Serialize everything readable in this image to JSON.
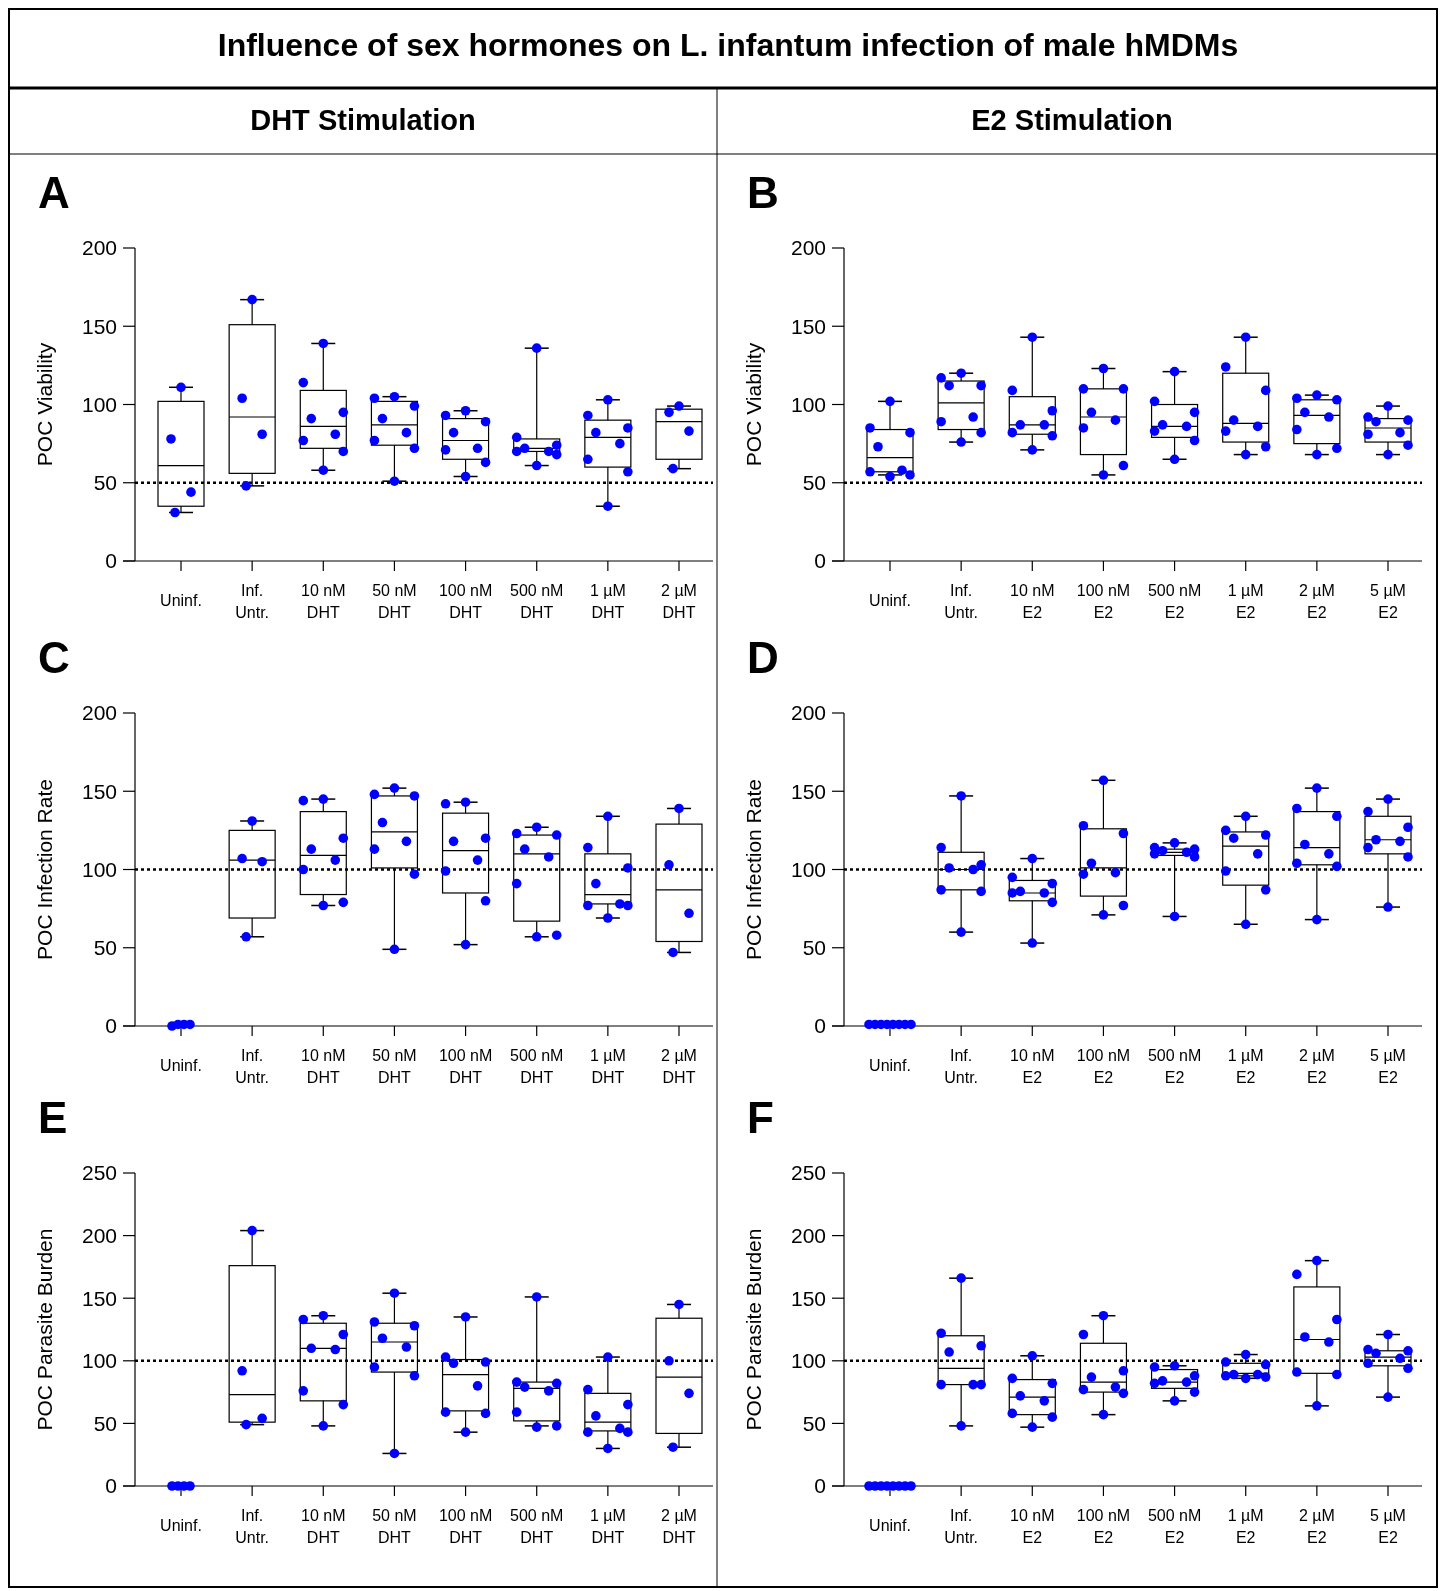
{
  "chart_data": [
    {
      "type": "other",
      "title": "Influence of sex hormones on L. infantum infection of male hMDMs",
      "annotations": [
        "DHT Stimulation",
        "E2 Stimulation"
      ]
    },
    {
      "type": "box",
      "title": "A",
      "ylabel": "POC Viability",
      "categories": [
        "Uninf.",
        "Inf. Untr.",
        "10 nM DHT",
        "50 nM DHT",
        "100 nM DHT",
        "500 nM DHT",
        "1 µM DHT",
        "2 µM DHT"
      ],
      "ylim": [
        0,
        200
      ],
      "yticks": [
        0,
        50,
        100,
        150,
        200
      ],
      "boxes": [
        {
          "low": 31,
          "q1": 35,
          "median": 61,
          "q3": 102,
          "high": 111
        },
        {
          "low": 48,
          "q1": 56,
          "median": 92,
          "q3": 151,
          "high": 167
        },
        {
          "low": 58,
          "q1": 72,
          "median": 86,
          "q3": 109,
          "high": 139
        },
        {
          "low": 51,
          "q1": 74,
          "median": 87,
          "q3": 102,
          "high": 105
        },
        {
          "low": 54,
          "q1": 65,
          "median": 77,
          "q3": 91,
          "high": 96
        },
        {
          "low": 61,
          "q1": 70,
          "median": 72,
          "q3": 78,
          "high": 136
        },
        {
          "low": 35,
          "q1": 60,
          "median": 79,
          "q3": 90,
          "high": 103
        },
        {
          "low": 59,
          "q1": 65,
          "median": 89,
          "q3": 97,
          "high": 99
        }
      ],
      "series": [
        {
          "type": "scatter",
          "color": "#0000ff",
          "marker": "circle",
          "x": [
            "Uninf.",
            "Uninf.",
            "Uninf.",
            "Uninf.",
            "Inf. Untr.",
            "Inf. Untr.",
            "Inf. Untr.",
            "Inf. Untr.",
            "10 nM DHT",
            "10 nM DHT",
            "10 nM DHT",
            "10 nM DHT",
            "10 nM DHT",
            "10 nM DHT",
            "10 nM DHT",
            "10 nM DHT",
            "50 nM DHT",
            "50 nM DHT",
            "50 nM DHT",
            "50 nM DHT",
            "50 nM DHT",
            "50 nM DHT",
            "50 nM DHT",
            "50 nM DHT",
            "100 nM DHT",
            "100 nM DHT",
            "100 nM DHT",
            "100 nM DHT",
            "100 nM DHT",
            "100 nM DHT",
            "100 nM DHT",
            "100 nM DHT",
            "500 nM DHT",
            "500 nM DHT",
            "500 nM DHT",
            "500 nM DHT",
            "500 nM DHT",
            "500 nM DHT",
            "500 nM DHT",
            "500 nM DHT",
            "1 µM DHT",
            "1 µM DHT",
            "1 µM DHT",
            "1 µM DHT",
            "1 µM DHT",
            "1 µM DHT",
            "1 µM DHT",
            "1 µM DHT",
            "2 µM DHT",
            "2 µM DHT",
            "2 µM DHT",
            "2 µM DHT"
          ],
          "values": [
            111,
            78,
            44,
            31,
            167,
            104,
            81,
            48,
            139,
            114,
            95,
            91,
            81,
            77,
            70,
            58,
            105,
            104,
            99,
            91,
            82,
            77,
            72,
            51,
            96,
            93,
            89,
            82,
            72,
            71,
            63,
            54,
            136,
            79,
            74,
            72,
            70,
            70,
            68,
            61,
            103,
            93,
            85,
            82,
            75,
            65,
            57,
            35,
            99,
            95,
            83,
            59
          ]
        }
      ],
      "ref_lines": [
        {
          "axis": "y",
          "value": 50,
          "line_style": "dotted",
          "color": "#000000"
        }
      ]
    },
    {
      "type": "box",
      "title": "B",
      "ylabel": "POC Viability",
      "categories": [
        "Uninf.",
        "Inf. Untr.",
        "10 nM E2",
        "100 nM E2",
        "500 nM E2",
        "1 µM E2",
        "2 µM E2",
        "5 µM E2"
      ],
      "ylim": [
        0,
        200
      ],
      "yticks": [
        0,
        50,
        100,
        150,
        200
      ],
      "boxes": [
        {
          "low": 55,
          "q1": 57,
          "median": 66,
          "q3": 84,
          "high": 102
        },
        {
          "low": 76,
          "q1": 84,
          "median": 101,
          "q3": 115,
          "high": 120
        },
        {
          "low": 71,
          "q1": 81,
          "median": 87,
          "q3": 105,
          "high": 143
        },
        {
          "low": 55,
          "q1": 68,
          "median": 92,
          "q3": 110,
          "high": 123
        },
        {
          "low": 65,
          "q1": 79,
          "median": 86,
          "q3": 100,
          "high": 121
        },
        {
          "low": 68,
          "q1": 76,
          "median": 88,
          "q3": 120,
          "high": 143
        },
        {
          "low": 68,
          "q1": 75,
          "median": 93,
          "q3": 103,
          "high": 106
        },
        {
          "low": 68,
          "q1": 76,
          "median": 85,
          "q3": 91,
          "high": 99
        }
      ],
      "series": [
        {
          "type": "scatter",
          "color": "#0000ff",
          "marker": "circle",
          "x": [
            "Uninf.",
            "Uninf.",
            "Uninf.",
            "Uninf.",
            "Uninf.",
            "Uninf.",
            "Uninf.",
            "Uninf.",
            "Inf. Untr.",
            "Inf. Untr.",
            "Inf. Untr.",
            "Inf. Untr.",
            "Inf. Untr.",
            "Inf. Untr.",
            "Inf. Untr.",
            "Inf. Untr.",
            "10 nM E2",
            "10 nM E2",
            "10 nM E2",
            "10 nM E2",
            "10 nM E2",
            "10 nM E2",
            "10 nM E2",
            "10 nM E2",
            "100 nM E2",
            "100 nM E2",
            "100 nM E2",
            "100 nM E2",
            "100 nM E2",
            "100 nM E2",
            "100 nM E2",
            "100 nM E2",
            "500 nM E2",
            "500 nM E2",
            "500 nM E2",
            "500 nM E2",
            "500 nM E2",
            "500 nM E2",
            "500 nM E2",
            "500 nM E2",
            "1 µM E2",
            "1 µM E2",
            "1 µM E2",
            "1 µM E2",
            "1 µM E2",
            "1 µM E2",
            "1 µM E2",
            "1 µM E2",
            "2 µM E2",
            "2 µM E2",
            "2 µM E2",
            "2 µM E2",
            "2 µM E2",
            "2 µM E2",
            "2 µM E2",
            "2 µM E2",
            "5 µM E2",
            "5 µM E2",
            "5 µM E2",
            "5 µM E2",
            "5 µM E2",
            "5 µM E2",
            "5 µM E2",
            "5 µM E2"
          ],
          "values": [
            102,
            85,
            82,
            73,
            58,
            57,
            55,
            54,
            120,
            117,
            112,
            112,
            92,
            89,
            82,
            76,
            143,
            109,
            96,
            87,
            87,
            82,
            80,
            71,
            123,
            110,
            110,
            95,
            90,
            85,
            61,
            55,
            121,
            102,
            95,
            87,
            86,
            83,
            77,
            65,
            143,
            124,
            109,
            90,
            86,
            83,
            73,
            68,
            106,
            104,
            103,
            95,
            92,
            84,
            72,
            68,
            99,
            92,
            90,
            89,
            82,
            81,
            74,
            68
          ]
        }
      ],
      "ref_lines": [
        {
          "axis": "y",
          "value": 50,
          "line_style": "dotted",
          "color": "#000000"
        }
      ]
    },
    {
      "type": "box",
      "title": "C",
      "ylabel": "POC Infection Rate",
      "categories": [
        "Uninf.",
        "Inf. Untr.",
        "10 nM DHT",
        "50 nM DHT",
        "100 nM DHT",
        "500 nM DHT",
        "1 µM DHT",
        "2 µM DHT"
      ],
      "ylim": [
        0,
        200
      ],
      "yticks": [
        0,
        50,
        100,
        150,
        200
      ],
      "boxes": [
        null,
        {
          "low": 57,
          "q1": 69,
          "median": 106,
          "q3": 125,
          "high": 131
        },
        {
          "low": 77,
          "q1": 84,
          "median": 109,
          "q3": 137,
          "high": 145
        },
        {
          "low": 49,
          "q1": 101,
          "median": 124,
          "q3": 147,
          "high": 152
        },
        {
          "low": 52,
          "q1": 85,
          "median": 112,
          "q3": 136,
          "high": 143
        },
        {
          "low": 57,
          "q1": 67,
          "median": 110,
          "q3": 122,
          "high": 127
        },
        {
          "low": 69,
          "q1": 78,
          "median": 84,
          "q3": 110,
          "high": 134
        },
        {
          "low": 47,
          "q1": 54,
          "median": 87,
          "q3": 129,
          "high": 139
        }
      ],
      "series": [
        {
          "type": "scatter",
          "color": "#0000ff",
          "marker": "circle",
          "x": [
            "Uninf.",
            "Uninf.",
            "Uninf.",
            "Uninf.",
            "Inf. Untr.",
            "Inf. Untr.",
            "Inf. Untr.",
            "Inf. Untr.",
            "10 nM DHT",
            "10 nM DHT",
            "10 nM DHT",
            "10 nM DHT",
            "10 nM DHT",
            "10 nM DHT",
            "10 nM DHT",
            "10 nM DHT",
            "50 nM DHT",
            "50 nM DHT",
            "50 nM DHT",
            "50 nM DHT",
            "50 nM DHT",
            "50 nM DHT",
            "50 nM DHT",
            "50 nM DHT",
            "100 nM DHT",
            "100 nM DHT",
            "100 nM DHT",
            "100 nM DHT",
            "100 nM DHT",
            "100 nM DHT",
            "100 nM DHT",
            "100 nM DHT",
            "500 nM DHT",
            "500 nM DHT",
            "500 nM DHT",
            "500 nM DHT",
            "500 nM DHT",
            "500 nM DHT",
            "500 nM DHT",
            "500 nM DHT",
            "1 µM DHT",
            "1 µM DHT",
            "1 µM DHT",
            "1 µM DHT",
            "1 µM DHT",
            "1 µM DHT",
            "1 µM DHT",
            "1 µM DHT",
            "2 µM DHT",
            "2 µM DHT",
            "2 µM DHT",
            "2 µM DHT"
          ],
          "values": [
            0,
            1,
            1,
            1,
            131,
            107,
            105,
            57,
            145,
            144,
            120,
            113,
            106,
            100,
            79,
            77,
            152,
            148,
            147,
            130,
            118,
            113,
            97,
            49,
            143,
            142,
            120,
            118,
            106,
            99,
            80,
            52,
            127,
            123,
            122,
            113,
            108,
            91,
            58,
            57,
            134,
            114,
            101,
            91,
            78,
            77,
            77,
            69,
            139,
            103,
            72,
            47
          ]
        }
      ],
      "ref_lines": [
        {
          "axis": "y",
          "value": 100,
          "line_style": "dotted",
          "color": "#000000"
        }
      ]
    },
    {
      "type": "box",
      "title": "D",
      "ylabel": "POC Infection Rate",
      "categories": [
        "Uninf.",
        "Inf. Untr.",
        "10 nM E2",
        "100 nM E2",
        "500 nM E2",
        "1 µM E2",
        "2 µM E2",
        "5 µM E2"
      ],
      "ylim": [
        0,
        200
      ],
      "yticks": [
        0,
        50,
        100,
        150,
        200
      ],
      "boxes": [
        null,
        {
          "low": 60,
          "q1": 87,
          "median": 100,
          "q3": 111,
          "high": 147
        },
        {
          "low": 53,
          "q1": 80,
          "median": 85,
          "q3": 93,
          "high": 107
        },
        {
          "low": 71,
          "q1": 83,
          "median": 101,
          "q3": 126,
          "high": 157
        },
        {
          "low": 70,
          "q1": 109,
          "median": 111,
          "q3": 113,
          "high": 117
        },
        {
          "low": 65,
          "q1": 90,
          "median": 115,
          "q3": 124,
          "high": 134
        },
        {
          "low": 68,
          "q1": 103,
          "median": 114,
          "q3": 137,
          "high": 152
        },
        {
          "low": 76,
          "q1": 110,
          "median": 119,
          "q3": 134,
          "high": 145
        }
      ],
      "series": [
        {
          "type": "scatter",
          "color": "#0000ff",
          "marker": "circle",
          "x": [
            "Uninf.",
            "Uninf.",
            "Uninf.",
            "Uninf.",
            "Uninf.",
            "Uninf.",
            "Uninf.",
            "Uninf.",
            "Inf. Untr.",
            "Inf. Untr.",
            "Inf. Untr.",
            "Inf. Untr.",
            "Inf. Untr.",
            "Inf. Untr.",
            "Inf. Untr.",
            "Inf. Untr.",
            "10 nM E2",
            "10 nM E2",
            "10 nM E2",
            "10 nM E2",
            "10 nM E2",
            "10 nM E2",
            "10 nM E2",
            "10 nM E2",
            "100 nM E2",
            "100 nM E2",
            "100 nM E2",
            "100 nM E2",
            "100 nM E2",
            "100 nM E2",
            "100 nM E2",
            "100 nM E2",
            "500 nM E2",
            "500 nM E2",
            "500 nM E2",
            "500 nM E2",
            "500 nM E2",
            "500 nM E2",
            "500 nM E2",
            "500 nM E2",
            "1 µM E2",
            "1 µM E2",
            "1 µM E2",
            "1 µM E2",
            "1 µM E2",
            "1 µM E2",
            "1 µM E2",
            "1 µM E2",
            "2 µM E2",
            "2 µM E2",
            "2 µM E2",
            "2 µM E2",
            "2 µM E2",
            "2 µM E2",
            "2 µM E2",
            "2 µM E2",
            "5 µM E2",
            "5 µM E2",
            "5 µM E2",
            "5 µM E2",
            "5 µM E2",
            "5 µM E2",
            "5 µM E2",
            "5 µM E2"
          ],
          "values": [
            1,
            1,
            1,
            1,
            1,
            1,
            1,
            1,
            147,
            114,
            103,
            101,
            100,
            87,
            86,
            60,
            107,
            95,
            91,
            86,
            85,
            85,
            79,
            53,
            157,
            128,
            123,
            104,
            98,
            97,
            77,
            71,
            117,
            114,
            113,
            112,
            111,
            110,
            108,
            70,
            134,
            125,
            122,
            120,
            110,
            99,
            87,
            65,
            152,
            139,
            134,
            116,
            110,
            104,
            102,
            68,
            145,
            137,
            127,
            119,
            118,
            114,
            108,
            76
          ]
        }
      ],
      "ref_lines": [
        {
          "axis": "y",
          "value": 100,
          "line_style": "dotted",
          "color": "#000000"
        }
      ]
    },
    {
      "type": "box",
      "title": "E",
      "ylabel": "POC Parasite Burden",
      "categories": [
        "Uninf.",
        "Inf. Untr.",
        "10 nM DHT",
        "50 nM DHT",
        "100 nM DHT",
        "500 nM DHT",
        "1 µM DHT",
        "2 µM DHT"
      ],
      "ylim": [
        0,
        250
      ],
      "yticks": [
        0,
        50,
        100,
        150,
        200,
        250
      ],
      "boxes": [
        null,
        {
          "low": 49,
          "q1": 51,
          "median": 73,
          "q3": 176,
          "high": 204
        },
        {
          "low": 48,
          "q1": 68,
          "median": 110,
          "q3": 130,
          "high": 136
        },
        {
          "low": 26,
          "q1": 91,
          "median": 115,
          "q3": 130,
          "high": 154
        },
        {
          "low": 43,
          "q1": 60,
          "median": 89,
          "q3": 101,
          "high": 135
        },
        {
          "low": 48,
          "q1": 52,
          "median": 78,
          "q3": 83,
          "high": 151
        },
        {
          "low": 30,
          "q1": 44,
          "median": 51,
          "q3": 74,
          "high": 103
        },
        {
          "low": 31,
          "q1": 42,
          "median": 87,
          "q3": 134,
          "high": 145
        }
      ],
      "series": [
        {
          "type": "scatter",
          "color": "#0000ff",
          "marker": "circle",
          "x": [
            "Uninf.",
            "Uninf.",
            "Uninf.",
            "Uninf.",
            "Inf. Untr.",
            "Inf. Untr.",
            "Inf. Untr.",
            "Inf. Untr.",
            "10 nM DHT",
            "10 nM DHT",
            "10 nM DHT",
            "10 nM DHT",
            "10 nM DHT",
            "10 nM DHT",
            "10 nM DHT",
            "10 nM DHT",
            "50 nM DHT",
            "50 nM DHT",
            "50 nM DHT",
            "50 nM DHT",
            "50 nM DHT",
            "50 nM DHT",
            "50 nM DHT",
            "50 nM DHT",
            "100 nM DHT",
            "100 nM DHT",
            "100 nM DHT",
            "100 nM DHT",
            "100 nM DHT",
            "100 nM DHT",
            "100 nM DHT",
            "100 nM DHT",
            "500 nM DHT",
            "500 nM DHT",
            "500 nM DHT",
            "500 nM DHT",
            "500 nM DHT",
            "500 nM DHT",
            "500 nM DHT",
            "500 nM DHT",
            "1 µM DHT",
            "1 µM DHT",
            "1 µM DHT",
            "1 µM DHT",
            "1 µM DHT",
            "1 µM DHT",
            "1 µM DHT",
            "1 µM DHT",
            "2 µM DHT",
            "2 µM DHT",
            "2 µM DHT",
            "2 µM DHT"
          ],
          "values": [
            0,
            0,
            0,
            0,
            204,
            92,
            54,
            49,
            136,
            133,
            121,
            110,
            109,
            76,
            65,
            48,
            154,
            131,
            128,
            118,
            111,
            95,
            88,
            26,
            135,
            103,
            99,
            98,
            80,
            59,
            58,
            43,
            151,
            83,
            82,
            79,
            76,
            59,
            48,
            47,
            103,
            77,
            65,
            56,
            46,
            43,
            43,
            30,
            145,
            100,
            74,
            31
          ]
        }
      ],
      "ref_lines": [
        {
          "axis": "y",
          "value": 100,
          "line_style": "dotted",
          "color": "#000000"
        }
      ]
    },
    {
      "type": "box",
      "title": "F",
      "ylabel": "POC Parasite Burden",
      "categories": [
        "Uninf.",
        "Inf. Untr.",
        "10 nM E2",
        "100 nM E2",
        "500 nM E2",
        "1 µM E2",
        "2 µM E2",
        "5 µM E2"
      ],
      "ylim": [
        0,
        250
      ],
      "yticks": [
        0,
        50,
        100,
        150,
        200,
        250
      ],
      "boxes": [
        null,
        {
          "low": 48,
          "q1": 81,
          "median": 94,
          "q3": 120,
          "high": 166
        },
        {
          "low": 47,
          "q1": 57,
          "median": 71,
          "q3": 85,
          "high": 104
        },
        {
          "low": 57,
          "q1": 75,
          "median": 83,
          "q3": 114,
          "high": 136
        },
        {
          "low": 68,
          "q1": 78,
          "median": 83,
          "q3": 93,
          "high": 96
        },
        {
          "low": 86,
          "q1": 88,
          "median": 90,
          "q3": 98,
          "high": 105
        },
        {
          "low": 64,
          "q1": 90,
          "median": 117,
          "q3": 159,
          "high": 180
        },
        {
          "low": 71,
          "q1": 96,
          "median": 103,
          "q3": 108,
          "high": 121
        }
      ],
      "series": [
        {
          "type": "scatter",
          "color": "#0000ff",
          "marker": "circle",
          "x": [
            "Uninf.",
            "Uninf.",
            "Uninf.",
            "Uninf.",
            "Uninf.",
            "Uninf.",
            "Uninf.",
            "Uninf.",
            "Inf. Untr.",
            "Inf. Untr.",
            "Inf. Untr.",
            "Inf. Untr.",
            "Inf. Untr.",
            "Inf. Untr.",
            "Inf. Untr.",
            "Inf. Untr.",
            "10 nM E2",
            "10 nM E2",
            "10 nM E2",
            "10 nM E2",
            "10 nM E2",
            "10 nM E2",
            "10 nM E2",
            "10 nM E2",
            "100 nM E2",
            "100 nM E2",
            "100 nM E2",
            "100 nM E2",
            "100 nM E2",
            "100 nM E2",
            "100 nM E2",
            "100 nM E2",
            "500 nM E2",
            "500 nM E2",
            "500 nM E2",
            "500 nM E2",
            "500 nM E2",
            "500 nM E2",
            "500 nM E2",
            "500 nM E2",
            "1 µM E2",
            "1 µM E2",
            "1 µM E2",
            "1 µM E2",
            "1 µM E2",
            "1 µM E2",
            "1 µM E2",
            "1 µM E2",
            "2 µM E2",
            "2 µM E2",
            "2 µM E2",
            "2 µM E2",
            "2 µM E2",
            "2 µM E2",
            "2 µM E2",
            "2 µM E2",
            "5 µM E2",
            "5 µM E2",
            "5 µM E2",
            "5 µM E2",
            "5 µM E2",
            "5 µM E2",
            "5 µM E2",
            "5 µM E2"
          ],
          "values": [
            0,
            0,
            0,
            0,
            0,
            0,
            0,
            0,
            166,
            122,
            112,
            107,
            81,
            81,
            81,
            48,
            104,
            86,
            82,
            72,
            68,
            58,
            55,
            47,
            136,
            121,
            92,
            87,
            79,
            77,
            74,
            57,
            96,
            95,
            88,
            84,
            83,
            82,
            75,
            68,
            105,
            99,
            97,
            89,
            89,
            88,
            87,
            86,
            180,
            169,
            133,
            119,
            115,
            91,
            89,
            64,
            121,
            109,
            108,
            106,
            102,
            98,
            94,
            71
          ]
        }
      ],
      "ref_lines": [
        {
          "axis": "y",
          "value": 100,
          "line_style": "dotted",
          "color": "#000000"
        }
      ]
    }
  ]
}
